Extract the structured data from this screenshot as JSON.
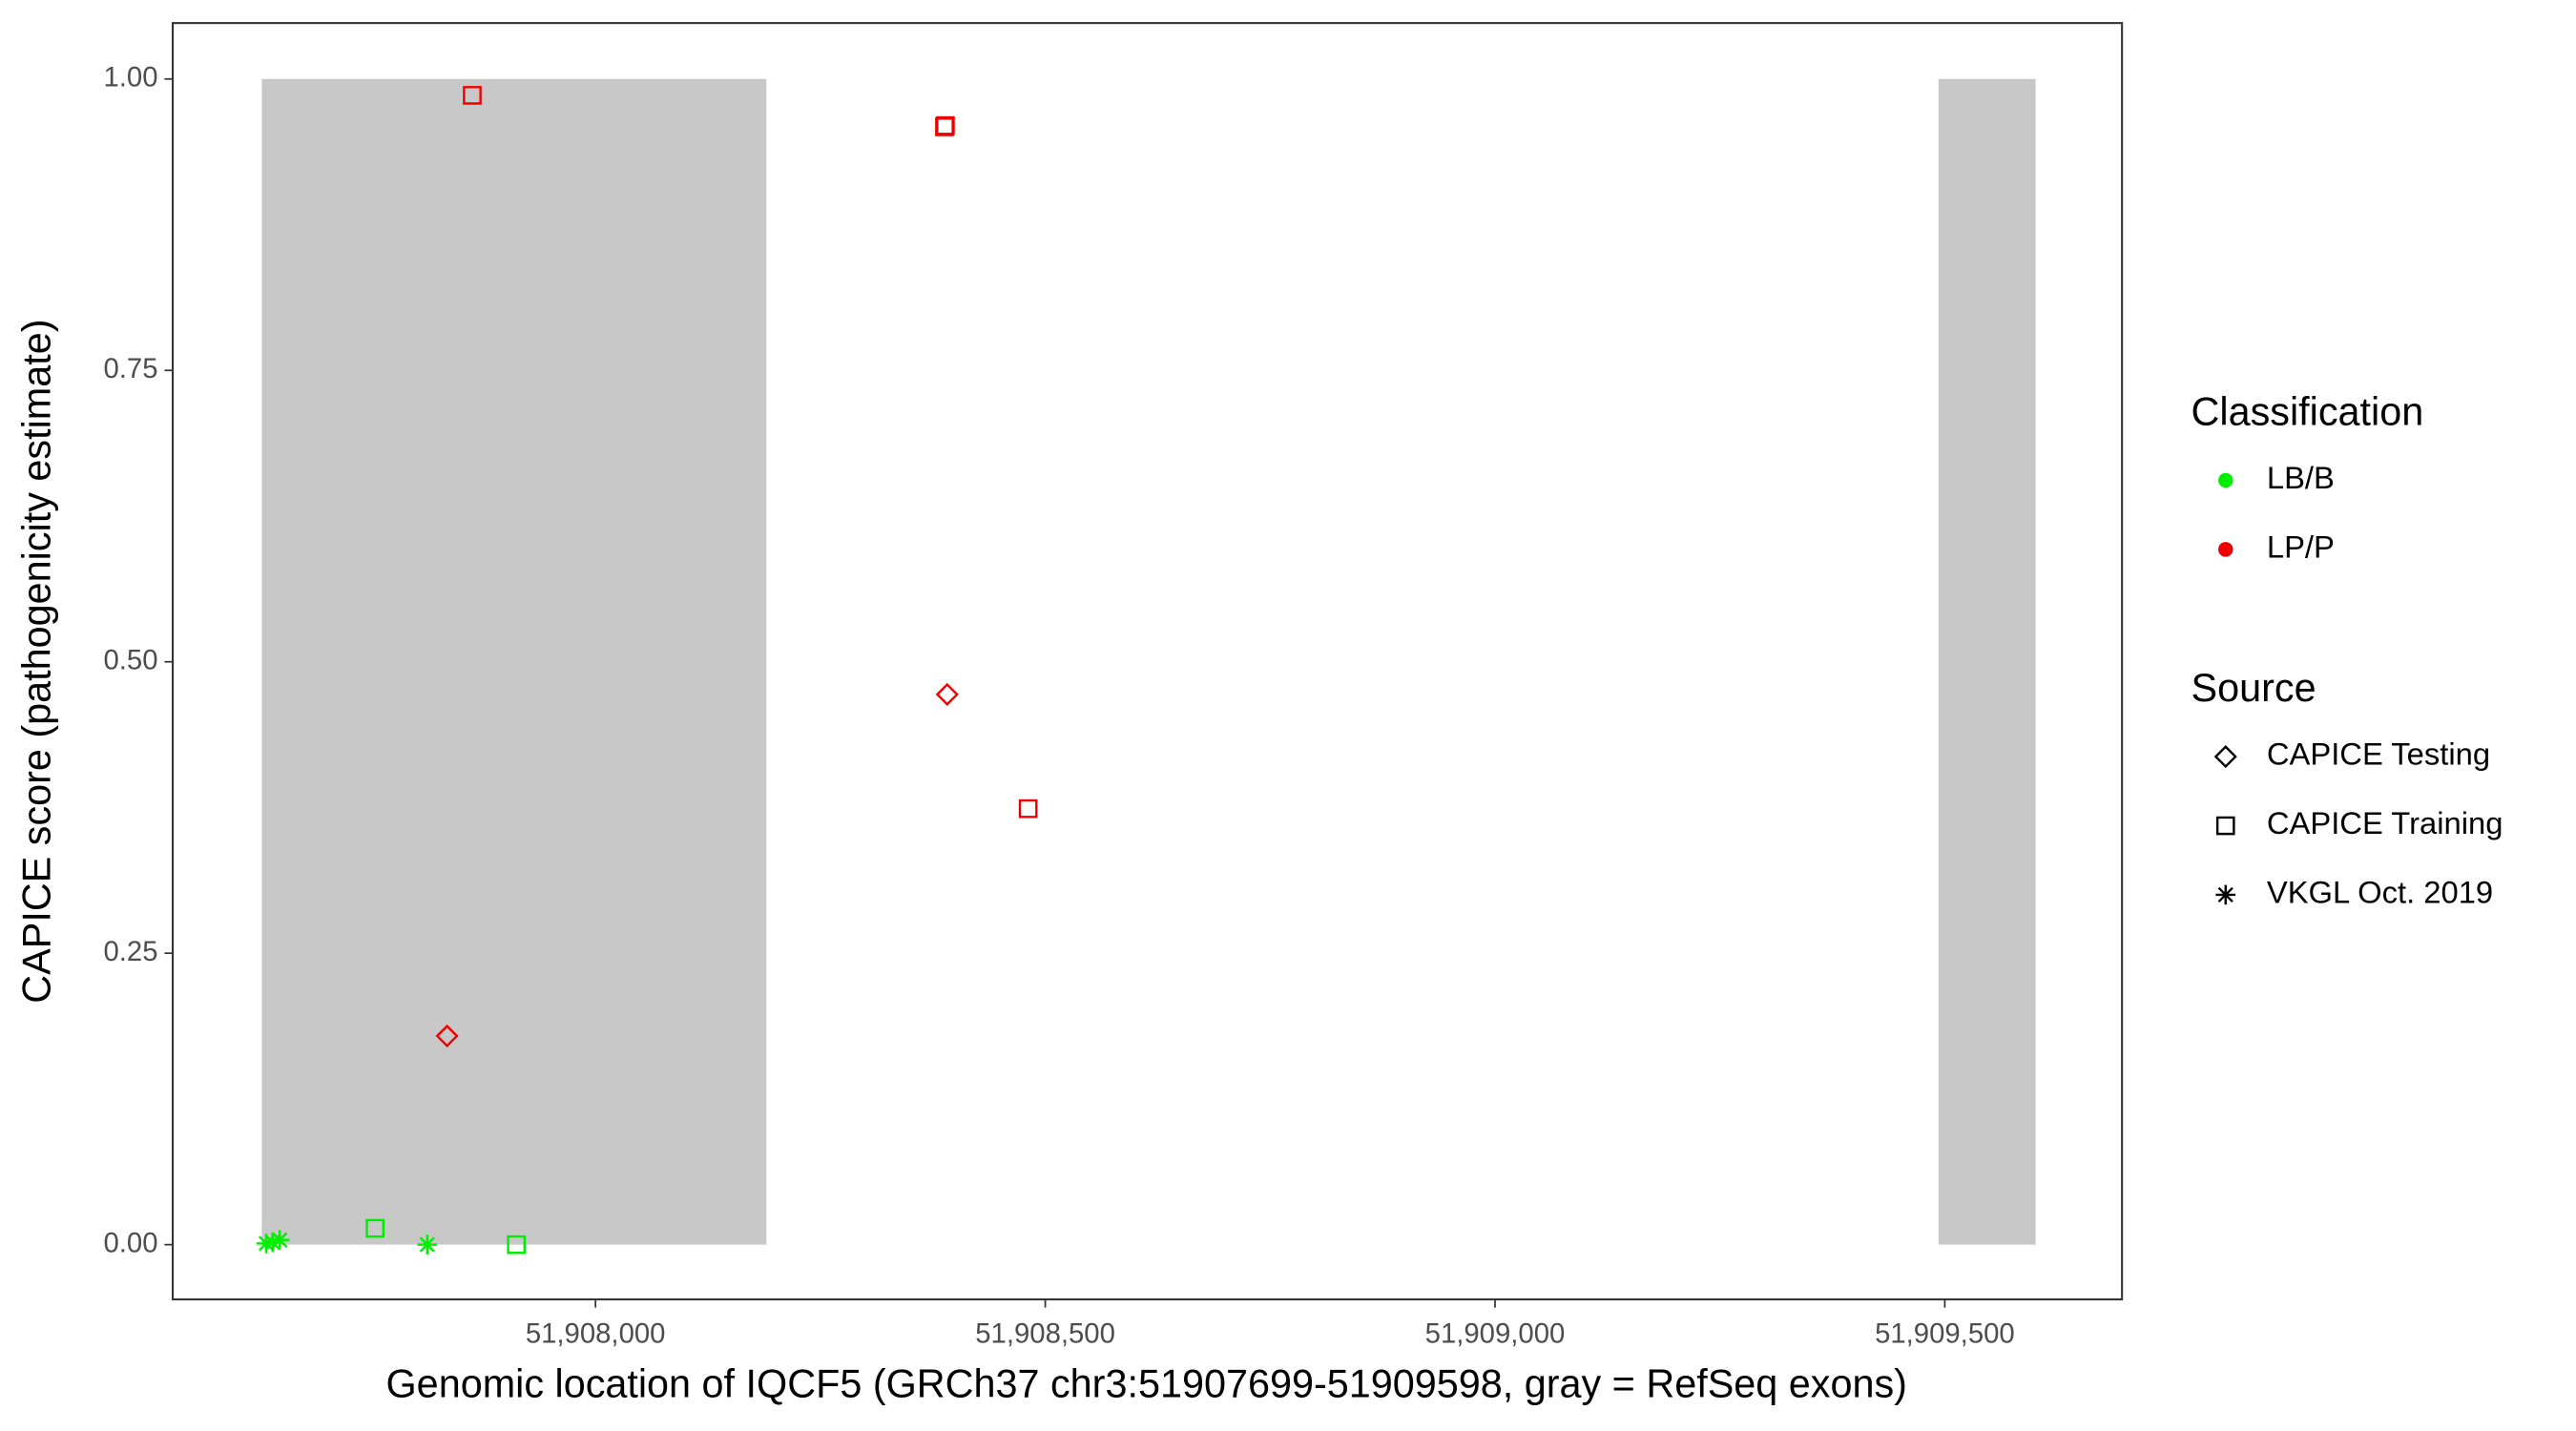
{
  "chart_data": {
    "type": "scatter",
    "x_label": "Genomic location of IQCF5 (GRCh37 chr3:51907699-51909598, gray = RefSeq exons)",
    "y_label": "CAPICE score (pathogenicity estimate)",
    "xlim": [
      51907530,
      51909697
    ],
    "ylim": [
      -0.047,
      1.048
    ],
    "xticks": [
      {
        "value": 51908000,
        "label": "51,908,000"
      },
      {
        "value": 51908500,
        "label": "51,908,500"
      },
      {
        "value": 51909000,
        "label": "51,909,000"
      },
      {
        "value": 51909500,
        "label": "51,909,500"
      }
    ],
    "yticks": [
      {
        "value": 0,
        "label": "0.00"
      },
      {
        "value": 0.25,
        "label": "0.25"
      },
      {
        "value": 0.5,
        "label": "0.50"
      },
      {
        "value": 0.75,
        "label": "0.75"
      },
      {
        "value": 1,
        "label": "1.00"
      }
    ],
    "exon_color": "#c8c8c8",
    "exon_y": [
      0,
      1
    ],
    "exons": [
      {
        "start": 51907629,
        "end": 51908190
      },
      {
        "start": 51909493,
        "end": 51909601
      }
    ],
    "legend_classification": {
      "title": "Classification",
      "items": [
        {
          "name": "LB/B",
          "color": "#00ee00"
        },
        {
          "name": "LP/P",
          "color": "#ee0000"
        }
      ]
    },
    "legend_source": {
      "title": "Source",
      "items": [
        {
          "name": "CAPICE Testing",
          "shape": "diamond"
        },
        {
          "name": "CAPICE Training",
          "shape": "square"
        },
        {
          "name": "VKGL Oct. 2019",
          "shape": "asterisk"
        }
      ]
    },
    "series": [
      {
        "classification": "LB/B",
        "source": "VKGL Oct. 2019",
        "x": [
          51907634,
          51907641,
          51907649,
          51907813
        ],
        "values": [
          0.001,
          0.002,
          0.004,
          0
        ]
      },
      {
        "classification": "LB/B",
        "source": "CAPICE Training",
        "x": [
          51907755,
          51907912
        ],
        "values": [
          0.014,
          0
        ]
      },
      {
        "classification": "LP/P",
        "source": "CAPICE Training",
        "x": [
          51907863,
          51908388,
          51908389,
          51908481
        ],
        "values": [
          0.986,
          0.959,
          0.96,
          0.374
        ]
      },
      {
        "classification": "LP/P",
        "source": "CAPICE Testing",
        "x": [
          51907835,
          51908391
        ],
        "values": [
          0.179,
          0.472
        ]
      }
    ]
  }
}
